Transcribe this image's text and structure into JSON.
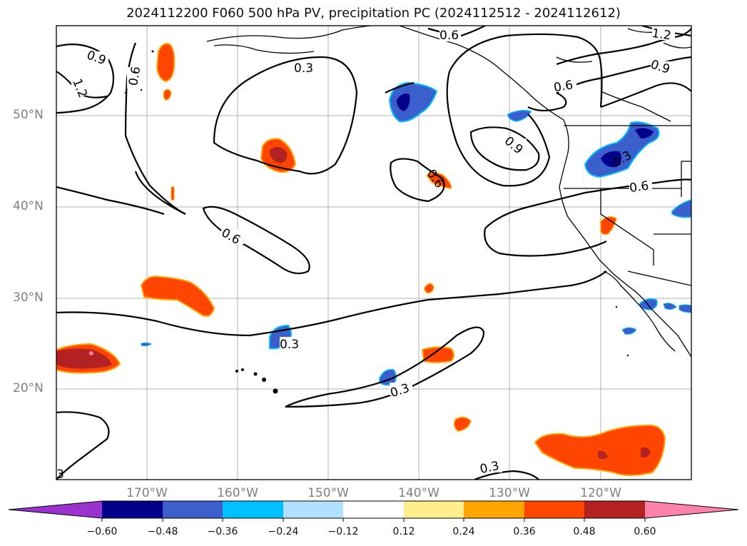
{
  "title": "2024112200 F060 500 hPa PV, precipitation PC (2024112512 - 2024112612)",
  "axes": {
    "lat_labels": [
      "50°N",
      "40°N",
      "30°N",
      "20°N"
    ],
    "lon_labels": [
      "170°W",
      "160°W",
      "150°W",
      "140°W",
      "130°W",
      "120°W"
    ]
  },
  "contour_labels": [
    {
      "name": "label-0.9-a",
      "text": "0.9"
    },
    {
      "name": "label-1.2-a",
      "text": "1.2"
    },
    {
      "name": "label-0.6-a",
      "text": "0.6"
    },
    {
      "name": "label-0.3-a",
      "text": "0.3"
    },
    {
      "name": "label-0.6-b",
      "text": "0.6"
    },
    {
      "name": "label-1.2-b",
      "text": "1.2"
    },
    {
      "name": "label-0.9-b",
      "text": "0.9"
    },
    {
      "name": "label-0.6-c",
      "text": "0.6"
    },
    {
      "name": "label-0.9-c",
      "text": "0.9"
    },
    {
      "name": "label-0.3-b",
      "text": "0.3"
    },
    {
      "name": "label-0.6-d",
      "text": "0.6"
    },
    {
      "name": "label-0.6-e",
      "text": "0.6"
    },
    {
      "name": "label-0.6-f",
      "text": "0.6"
    },
    {
      "name": "label-0.3-c",
      "text": "0.3"
    },
    {
      "name": "label-0.3-d",
      "text": "0.3"
    },
    {
      "name": "label-0.3-e",
      "text": "0.3"
    },
    {
      "name": "label-3-edge",
      "text": "3"
    }
  ],
  "colorbar": {
    "ticks": [
      "−0.60",
      "−0.48",
      "−0.36",
      "−0.24",
      "−0.12",
      "0.12",
      "0.24",
      "0.36",
      "0.48",
      "0.60"
    ],
    "colors": [
      "#9a32cd",
      "#00008b",
      "#3a5fcd",
      "#00bfff",
      "#b0e2ff",
      "#ffffff",
      "#ffec8b",
      "#ffa500",
      "#ff4500",
      "#b22222",
      "#ff82ab"
    ]
  }
}
